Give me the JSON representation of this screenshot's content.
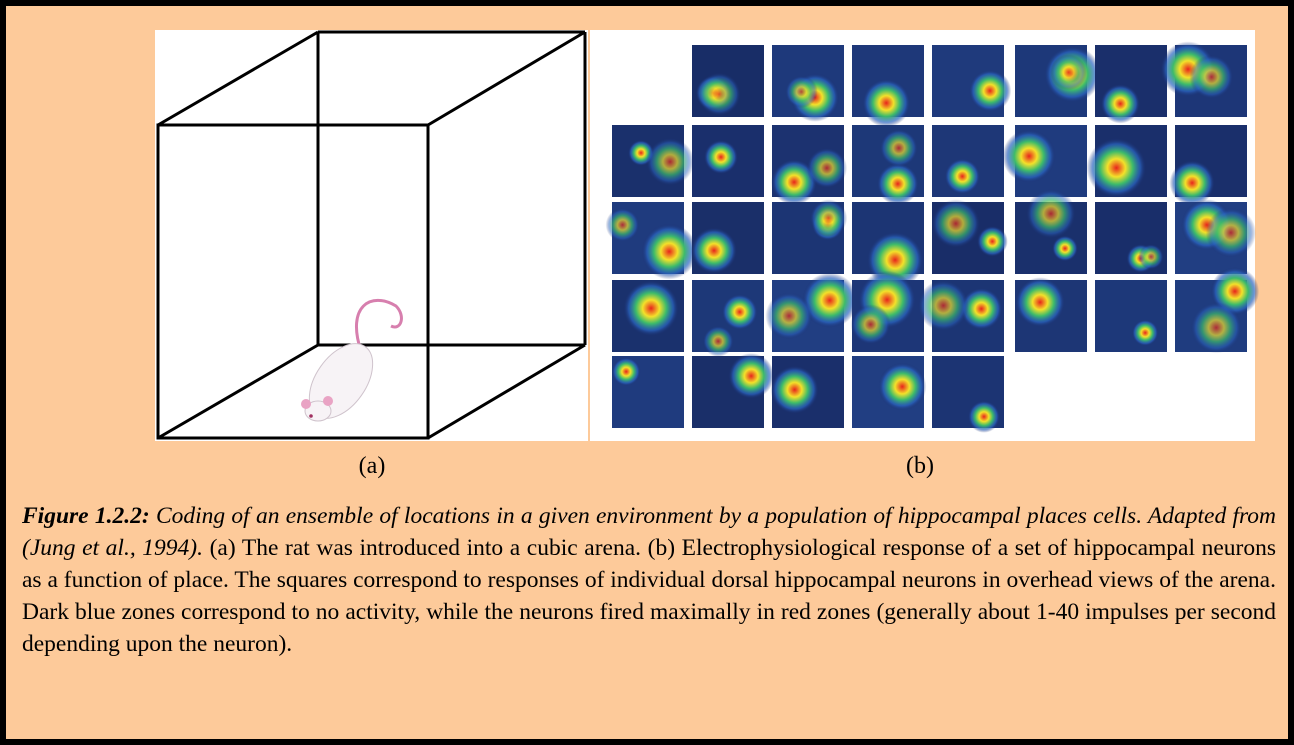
{
  "panels": [
    {
      "label": "(a)"
    },
    {
      "label": "(b)"
    }
  ],
  "caption": {
    "lead": "Figure 1.2.2:",
    "emphasis": "Coding of an ensemble of locations in a given environment by a population of hippocampal places cells. Adapted from (Jung et al., 1994).",
    "body": "(a) The rat was introduced into a cubic arena. (b) Electrophysiological response of a set of hippocampal neurons as a function of place. The squares correspond to responses of individual dorsal hippocampal neurons in overhead views of the arena. Dark blue zones correspond to no activity, while the neurons fired maximally in red zones (generally about 1-40 impulses per second depending upon the neuron)."
  }
}
